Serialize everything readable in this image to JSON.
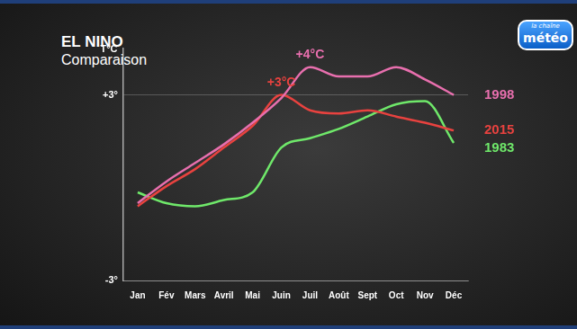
{
  "chart_data": {
    "type": "line",
    "title": "EL NINO",
    "subtitle": "Comparaison",
    "y_label": "T°C",
    "categories": [
      "Jan",
      "Fév",
      "Mars",
      "Avril",
      "Mai",
      "Juin",
      "Juil",
      "Août",
      "Sept",
      "Oct",
      "Nov",
      "Déc"
    ],
    "series": [
      {
        "name": "1998",
        "color": "#e86fae",
        "values": [
          -0.5,
          0.2,
          0.8,
          1.4,
          2.1,
          2.9,
          3.9,
          3.6,
          3.6,
          3.9,
          3.5,
          3.0
        ]
      },
      {
        "name": "2015",
        "color": "#e8423f",
        "values": [
          -0.6,
          0.05,
          0.6,
          1.3,
          2.0,
          3.0,
          2.5,
          2.4,
          2.5,
          2.3,
          2.1,
          1.85
        ]
      },
      {
        "name": "1983",
        "color": "#6fe86a",
        "values": [
          -0.15,
          -0.5,
          -0.6,
          -0.4,
          -0.15,
          1.3,
          1.6,
          1.9,
          2.3,
          2.7,
          2.8,
          1.45
        ]
      }
    ],
    "annotations": [
      {
        "text": "+4°C",
        "series": "1998",
        "category": "Juil"
      },
      {
        "text": "+3°C",
        "series": "2015",
        "category": "Juin"
      }
    ],
    "ylim": [
      -3,
      4.5
    ],
    "yticks": [
      {
        "value": -3,
        "label": "-3°"
      },
      {
        "value": 3,
        "label": "+3°"
      }
    ],
    "grid": true,
    "marker": "none",
    "line_style": "solid",
    "legend": "none"
  },
  "logo": [
    "la chaîne",
    "météo"
  ]
}
